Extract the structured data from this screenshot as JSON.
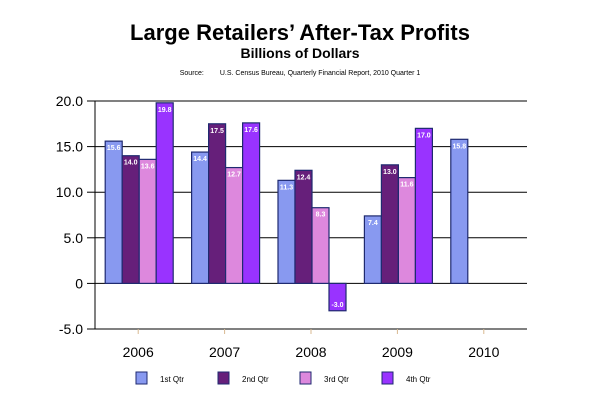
{
  "chart_data": {
    "type": "bar",
    "title": "Large Retailers’ After-Tax Profits",
    "subtitle": "Billions of Dollars",
    "source_label": "Source:",
    "source_text": "U.S. Census Bureau, Quarterly Financial Report, 2010 Quarter 1",
    "xlabel": "",
    "ylabel": "",
    "ylim": [
      -5,
      20
    ],
    "yticks": [
      20,
      15,
      10,
      5,
      0,
      -5
    ],
    "ytick_labels": [
      "20.0",
      "15.0",
      "10.0",
      "5.0",
      "0",
      "-5.0"
    ],
    "grid": true,
    "legend_position": "bottom",
    "categories": [
      "2006",
      "2007",
      "2008",
      "2009",
      "2010"
    ],
    "series": [
      {
        "name": "1st Qtr",
        "color": "#8899f0",
        "values": [
          15.6,
          14.4,
          11.3,
          7.4,
          15.8
        ],
        "labels": [
          "15.6",
          "14.4",
          "11.3",
          "7.4",
          "15.8"
        ]
      },
      {
        "name": "2nd Qtr",
        "color": "#661f7a",
        "values": [
          14.0,
          17.5,
          12.4,
          13.0,
          null
        ],
        "labels": [
          "14.0",
          "17.5",
          "12.4",
          "13.0",
          null
        ]
      },
      {
        "name": "3rd Qtr",
        "color": "#dd88dd",
        "values": [
          13.6,
          12.7,
          8.3,
          11.6,
          null
        ],
        "labels": [
          "13.6",
          "12.7",
          "8.3",
          "11.6",
          null
        ]
      },
      {
        "name": "4th Qtr",
        "color": "#9933ff",
        "values": [
          19.8,
          17.6,
          -3.0,
          17.0,
          null
        ],
        "labels": [
          "19.8",
          "17.6",
          "-3.0",
          "17.0",
          null
        ]
      }
    ]
  }
}
